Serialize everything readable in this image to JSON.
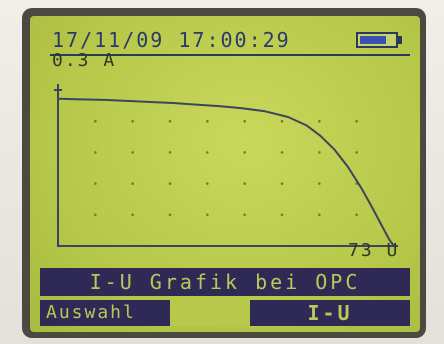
{
  "status": {
    "datetime": "17/11/09 17:00:29",
    "battery_level": 0.75,
    "battery_icon": "battery-icon"
  },
  "chart_data": {
    "type": "line",
    "title": "I-U Grafik bei OPC",
    "ymax_label": "0.3 A",
    "xmax_label": "73 U",
    "xlim": [
      0,
      73
    ],
    "ylim": [
      0,
      0.3
    ],
    "x": [
      0,
      5,
      10,
      15,
      20,
      25,
      30,
      35,
      40,
      45,
      50,
      54,
      57,
      60,
      63,
      66,
      68,
      70,
      72,
      73
    ],
    "y": [
      0.283,
      0.282,
      0.281,
      0.279,
      0.277,
      0.275,
      0.272,
      0.269,
      0.265,
      0.259,
      0.248,
      0.232,
      0.212,
      0.186,
      0.152,
      0.11,
      0.078,
      0.045,
      0.012,
      0.0
    ],
    "grid": "dotted",
    "colors": {
      "line": "#3b4560",
      "axis": "#3b4560"
    }
  },
  "softkeys": {
    "left_label": "Auswahl",
    "right_label": "I-U"
  }
}
